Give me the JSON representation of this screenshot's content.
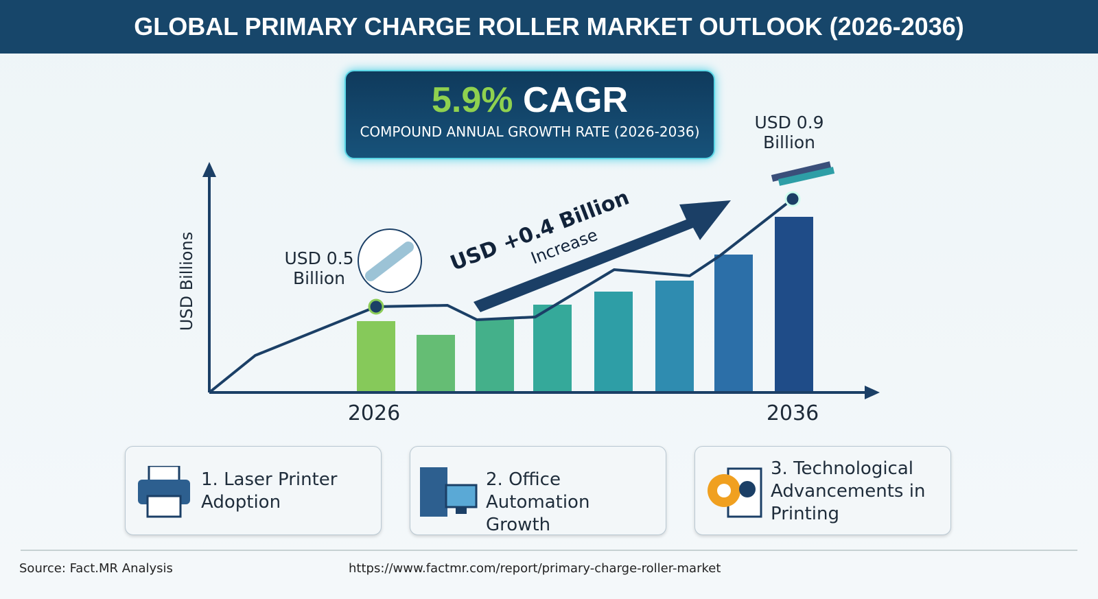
{
  "header": {
    "title": "GLOBAL PRIMARY CHARGE ROLLER MARKET OUTLOOK (2026-2036)"
  },
  "cagr": {
    "value": "5.9%",
    "label": "CAGR",
    "subtitle": "COMPOUND ANNUAL GROWTH RATE (2026-2036)"
  },
  "chart": {
    "y_axis_label": "USD Billions",
    "start_label": "USD 0.5 Billion",
    "end_label": "USD 0.9 Billion",
    "start_year": "2026",
    "end_year": "2036",
    "increase_value": "USD +0.4 Billion",
    "increase_label": "Increase"
  },
  "drivers": [
    "1. Laser Printer Adoption",
    "2. Office Automation Growth",
    "3. Technological Advancements in Printing"
  ],
  "footer": {
    "source": "Source: Fact.MR Analysis",
    "url": "https://www.factmr.com/report/primary-charge-roller-market"
  }
}
